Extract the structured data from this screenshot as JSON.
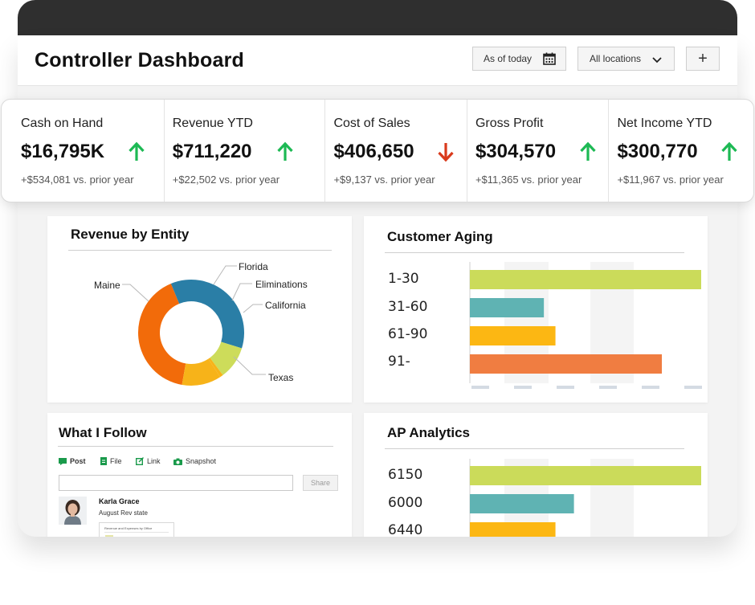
{
  "header": {
    "title": "Controller Dashboard",
    "date_filter": "As of today",
    "location_filter": "All locations",
    "add_label": "+"
  },
  "kpis": [
    {
      "label": "Cash on Hand",
      "value": "$16,795K",
      "trend": "up",
      "sub": "+$534,081 vs. prior year"
    },
    {
      "label": "Revenue YTD",
      "value": "$711,220",
      "trend": "up",
      "sub": "+$22,502 vs. prior year"
    },
    {
      "label": "Cost of Sales",
      "value": "$406,650",
      "trend": "down",
      "sub": "+$9,137 vs. prior year"
    },
    {
      "label": "Gross Profit",
      "value": "$304,570",
      "trend": "up",
      "sub": "+$11,365 vs. prior year"
    },
    {
      "label": "Net Income YTD",
      "value": "$300,770",
      "trend": "up",
      "sub": "+$11,967 vs. prior year"
    }
  ],
  "colors": {
    "up": "#1db954",
    "down": "#d93a1c",
    "lime": "#cbdb5a",
    "teal": "#5fb3b3",
    "amber": "#fcb713",
    "orange": "#f07d41",
    "donut_orange": "#f26b0a",
    "donut_blue": "#2a7ea6",
    "donut_yellow": "#f7b319",
    "donut_green": "#cddc5a"
  },
  "revenue_by_entity": {
    "title": "Revenue by Entity",
    "labels": [
      "Maine",
      "Florida",
      "Eliminations",
      "California",
      "Texas"
    ]
  },
  "customer_aging": {
    "title": "Customer Aging",
    "labels": [
      "1-30",
      "31-60",
      "61-90",
      "91-"
    ]
  },
  "what_i_follow": {
    "title": "What I Follow",
    "tabs": [
      "Post",
      "File",
      "Link",
      "Snapshot"
    ],
    "input_placeholder": "",
    "share_label": "Share",
    "post_author": "Karla Grace",
    "post_text": "August Rev state",
    "attachment_title": "Revenue and Expenses by Office"
  },
  "ap_analytics": {
    "title": "AP Analytics",
    "labels": [
      "6150",
      "6000",
      "6440"
    ]
  },
  "chart_data": [
    {
      "type": "pie",
      "title": "Revenue by Entity",
      "categories": [
        "Maine",
        "Texas",
        "California",
        "Eliminations",
        "Florida"
      ],
      "values": [
        41,
        36,
        10,
        1,
        12
      ]
    },
    {
      "type": "bar",
      "orientation": "horizontal",
      "title": "Customer Aging",
      "categories": [
        "1-30",
        "31-60",
        "61-90",
        "91-"
      ],
      "values": [
        100,
        32,
        37,
        83
      ],
      "xlim": [
        0,
        100
      ]
    },
    {
      "type": "bar",
      "orientation": "horizontal",
      "title": "AP Analytics",
      "categories": [
        "6150",
        "6000",
        "6440"
      ],
      "values": [
        100,
        45,
        37
      ],
      "xlim": [
        0,
        100
      ]
    }
  ]
}
